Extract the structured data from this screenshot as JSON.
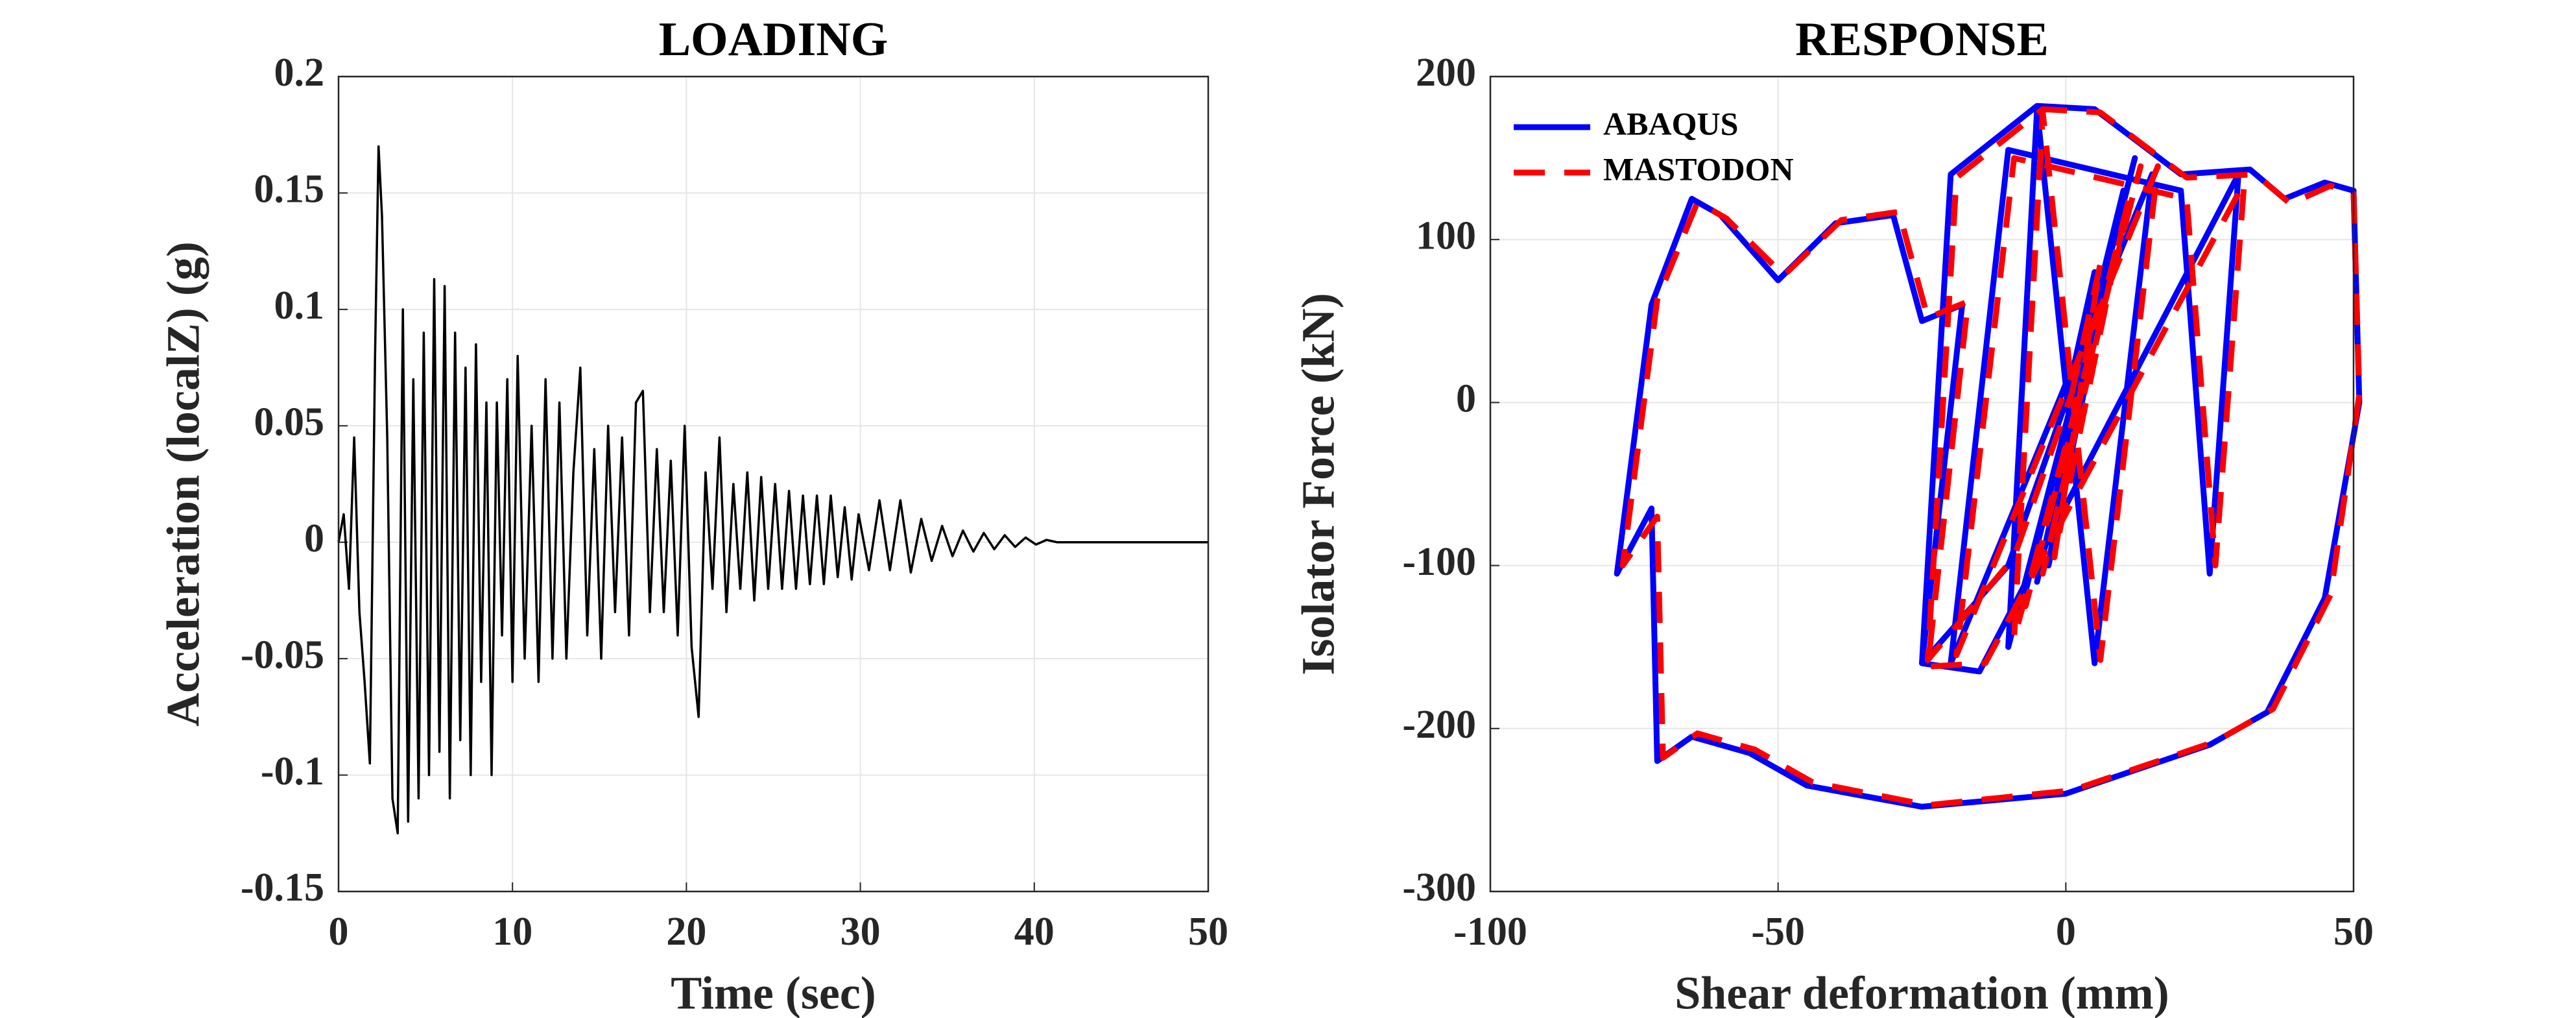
{
  "chart_data": [
    {
      "type": "line",
      "title": "LOADING",
      "xlabel": "Time (sec)",
      "ylabel": "Acceleration (localZ) (g)",
      "color": "#000000",
      "grid": true,
      "xlim": [
        0,
        50
      ],
      "ylim": [
        -0.15,
        0.2
      ],
      "xticks": [
        0,
        10,
        20,
        30,
        40,
        50
      ],
      "yticks": [
        -0.15,
        -0.1,
        -0.05,
        0,
        0.05,
        0.1,
        0.15,
        0.2
      ],
      "x": [
        0,
        0.3,
        0.6,
        0.9,
        1.2,
        1.5,
        1.8,
        2.1,
        2.3,
        2.5,
        2.8,
        3.1,
        3.4,
        3.7,
        4.0,
        4.3,
        4.6,
        4.9,
        5.2,
        5.5,
        5.8,
        6.1,
        6.4,
        6.7,
        7.0,
        7.3,
        7.6,
        7.9,
        8.2,
        8.5,
        8.8,
        9.1,
        9.4,
        9.7,
        10.0,
        10.3,
        10.7,
        11.1,
        11.5,
        11.9,
        12.3,
        12.7,
        13.1,
        13.5,
        13.9,
        14.3,
        14.7,
        15.1,
        15.5,
        15.9,
        16.3,
        16.7,
        17.1,
        17.5,
        17.9,
        18.3,
        18.7,
        19.1,
        19.5,
        19.9,
        20.3,
        20.7,
        21.1,
        21.5,
        21.9,
        22.3,
        22.7,
        23.1,
        23.5,
        23.9,
        24.3,
        24.7,
        25.1,
        25.5,
        25.9,
        26.3,
        26.7,
        27.1,
        27.5,
        27.9,
        28.3,
        28.7,
        29.1,
        29.5,
        29.9,
        30.5,
        31.1,
        31.7,
        32.3,
        32.9,
        33.5,
        34.1,
        34.7,
        35.3,
        35.9,
        36.5,
        37.1,
        37.7,
        38.3,
        38.9,
        39.5,
        40.1,
        40.7,
        41.3,
        50
      ],
      "values": [
        0,
        0.012,
        -0.02,
        0.045,
        -0.03,
        -0.06,
        -0.095,
        0.08,
        0.17,
        0.14,
        0.045,
        -0.11,
        -0.125,
        0.1,
        -0.12,
        0.07,
        -0.11,
        0.09,
        -0.1,
        0.113,
        -0.09,
        0.11,
        -0.11,
        0.09,
        -0.085,
        0.075,
        -0.1,
        0.085,
        -0.06,
        0.06,
        -0.1,
        0.06,
        -0.04,
        0.07,
        -0.06,
        0.08,
        -0.05,
        0.05,
        -0.06,
        0.07,
        -0.05,
        0.06,
        -0.05,
        0.03,
        0.075,
        -0.04,
        0.04,
        -0.05,
        0.05,
        -0.03,
        0.045,
        -0.04,
        0.06,
        0.065,
        -0.03,
        0.04,
        -0.03,
        0.035,
        -0.04,
        0.05,
        -0.045,
        -0.075,
        0.03,
        -0.02,
        0.045,
        -0.03,
        0.025,
        -0.02,
        0.03,
        -0.025,
        0.028,
        -0.02,
        0.025,
        -0.02,
        0.022,
        -0.02,
        0.02,
        -0.018,
        0.02,
        -0.018,
        0.02,
        -0.015,
        0.015,
        -0.016,
        0.012,
        -0.012,
        0.018,
        -0.012,
        0.018,
        -0.013,
        0.01,
        -0.008,
        0.007,
        -0.006,
        0.005,
        -0.004,
        0.004,
        -0.003,
        0.003,
        -0.002,
        0.002,
        -0.001,
        0.001,
        0,
        0
      ]
    },
    {
      "type": "line",
      "title": "RESPONSE",
      "xlabel": "Shear deformation (mm)",
      "ylabel": "Isolator Force (kN)",
      "grid": true,
      "legend": "upper left",
      "xlim": [
        -100,
        50
      ],
      "ylim": [
        -300,
        200
      ],
      "xticks": [
        -100,
        -50,
        0,
        50
      ],
      "yticks": [
        -300,
        -200,
        -100,
        0,
        100,
        200
      ],
      "series": [
        {
          "name": "ABAQUS",
          "color": "#0000ff",
          "dash": "solid",
          "x": [
            0,
            5,
            -3,
            8,
            -5,
            10,
            -8,
            12,
            -10,
            -5,
            5,
            15,
            -20,
            -10,
            20,
            25,
            30,
            -15,
            -25,
            -18,
            -25,
            -30,
            -40,
            -50,
            -60,
            -65,
            -72,
            -78,
            -72,
            -71,
            -65,
            -55,
            -45,
            -25,
            0,
            25,
            35,
            45,
            51,
            50,
            45,
            38,
            32,
            20,
            5,
            -5,
            -20,
            -25,
            -10,
            0
          ],
          "values": [
            0,
            80,
            -100,
            90,
            -110,
            130,
            -130,
            150,
            -150,
            180,
            -160,
            140,
            -160,
            155,
            130,
            -105,
            140,
            -165,
            -160,
            60,
            50,
            115,
            110,
            75,
            115,
            125,
            60,
            -105,
            -65,
            -220,
            -205,
            -215,
            -235,
            -248,
            -240,
            -210,
            -190,
            -120,
            0,
            130,
            135,
            125,
            143,
            140,
            180,
            182,
            140,
            -160,
            -100,
            0
          ]
        },
        {
          "name": "MASTODON",
          "color": "#ff0000",
          "dash": "dashed",
          "x": [
            1,
            6,
            -2,
            9,
            -4,
            11,
            -7,
            13,
            -9,
            -4,
            6,
            16,
            -19,
            -9,
            21,
            26,
            31,
            -14,
            -24,
            -17,
            -24,
            -29,
            -39,
            -49,
            -59,
            -64,
            -71,
            -77,
            -71,
            -70,
            -64,
            -54,
            -44,
            -24,
            1,
            26,
            36,
            46,
            51,
            50,
            46,
            39,
            33,
            21,
            6,
            -4,
            -19,
            -24,
            -9,
            1
          ],
          "values": [
            5,
            85,
            -95,
            95,
            -105,
            125,
            -125,
            145,
            -145,
            178,
            -158,
            145,
            -155,
            150,
            125,
            -100,
            135,
            -160,
            -162,
            62,
            52,
            117,
            112,
            78,
            113,
            123,
            63,
            -100,
            -70,
            -218,
            -203,
            -213,
            -233,
            -247,
            -238,
            -208,
            -188,
            -118,
            5,
            128,
            133,
            122,
            140,
            138,
            178,
            180,
            138,
            -158,
            -95,
            5
          ]
        }
      ]
    }
  ]
}
